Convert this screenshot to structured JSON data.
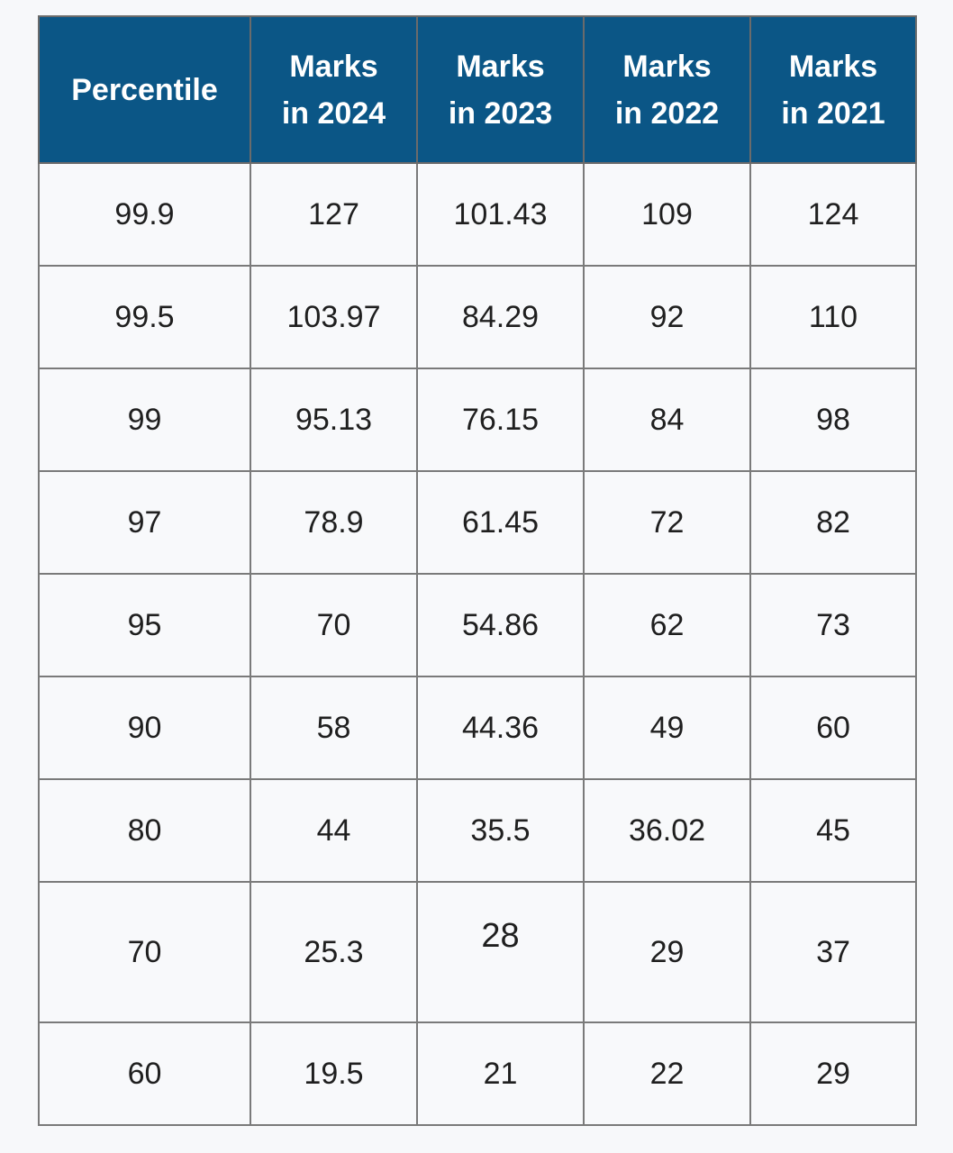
{
  "table": {
    "headers": [
      {
        "line1": "Percentile",
        "line2": ""
      },
      {
        "line1": "Marks",
        "line2": "in 2024"
      },
      {
        "line1": "Marks",
        "line2": "in 2023"
      },
      {
        "line1": "Marks",
        "line2": "in 2022"
      },
      {
        "line1": "Marks",
        "line2": "in 2021"
      }
    ],
    "rows": [
      [
        "99.9",
        "127",
        "101.43",
        "109",
        "124"
      ],
      [
        "99.5",
        "103.97",
        "84.29",
        "92",
        "110"
      ],
      [
        "99",
        "95.13",
        "76.15",
        "84",
        "98"
      ],
      [
        "97",
        "78.9",
        "61.45",
        "72",
        "82"
      ],
      [
        "95",
        "70",
        "54.86",
        "62",
        "73"
      ],
      [
        "90",
        "58",
        "44.36",
        "49",
        "60"
      ],
      [
        "80",
        "44",
        "35.5",
        "36.02",
        "45"
      ],
      [
        "70",
        "25.3",
        "28",
        "29",
        "37"
      ],
      [
        "60",
        "19.5",
        "21",
        "22",
        "29"
      ]
    ]
  },
  "colors": {
    "header_bg": "#0b5686",
    "header_text": "#ffffff",
    "cell_bg": "#f8f9fb",
    "border": "#7a7a7a"
  }
}
